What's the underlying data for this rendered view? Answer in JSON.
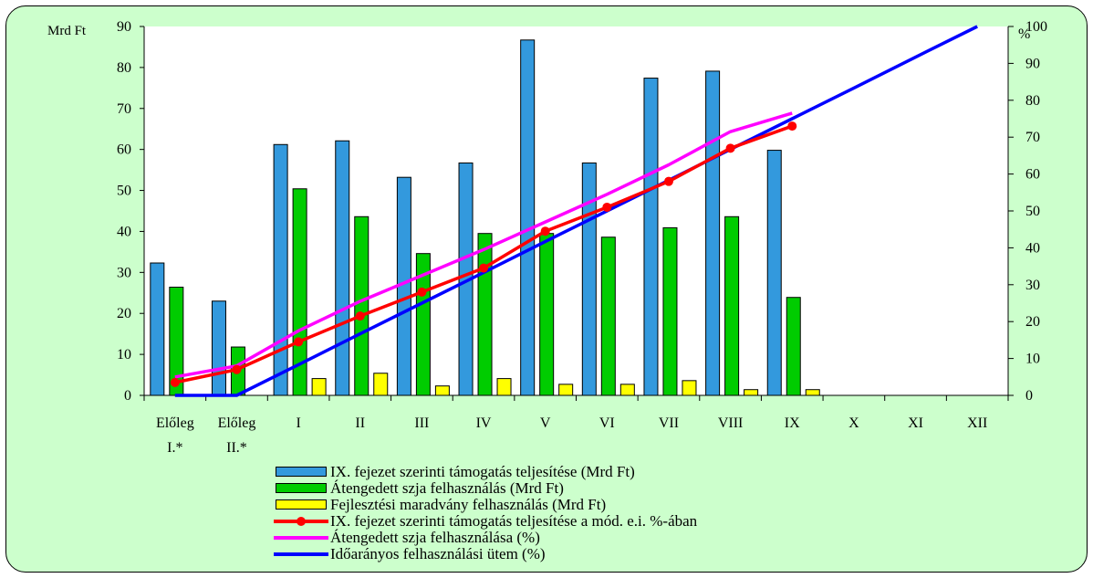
{
  "chart_data": {
    "type": "bar",
    "categories": [
      "Előleg I.*",
      "Előleg II.*",
      "I",
      "II",
      "III",
      "IV",
      "V",
      "VI",
      "VII",
      "VIII",
      "IX",
      "X",
      "XI",
      "XII"
    ],
    "left_axis": {
      "label": "Mrd Ft",
      "ylim": [
        0,
        90
      ],
      "ticks": [
        0,
        10,
        20,
        30,
        40,
        50,
        60,
        70,
        80,
        90
      ]
    },
    "right_axis": {
      "label": "%",
      "ylim": [
        0,
        100
      ],
      "ticks": [
        0,
        10,
        20,
        30,
        40,
        50,
        60,
        70,
        80,
        90,
        100
      ]
    },
    "series": [
      {
        "name": "IX. fejezet szerinti támogatás teljesítése (Mrd Ft)",
        "kind": "bar",
        "axis": "left",
        "color": "#3399dd",
        "values": [
          32.3,
          23,
          61.2,
          62.1,
          53.2,
          56.7,
          86.7,
          56.7,
          77.4,
          79.1,
          59.8,
          null,
          null,
          null
        ]
      },
      {
        "name": "Átengedett szja felhasználás (Mrd Ft)",
        "kind": "bar",
        "axis": "left",
        "color": "#00cc00",
        "values": [
          26.4,
          11.8,
          50.4,
          43.6,
          34.6,
          39.5,
          39.5,
          38.6,
          40.9,
          43.6,
          23.9,
          null,
          null,
          null
        ]
      },
      {
        "name": "Fejlesztési maradvány felhasználás (Mrd Ft)",
        "kind": "bar",
        "axis": "left",
        "color": "#ffff00",
        "values": [
          0,
          0,
          4.1,
          5.4,
          2.3,
          4.1,
          2.7,
          2.7,
          3.6,
          1.4,
          1.4,
          null,
          null,
          null
        ]
      },
      {
        "name": "IX. fejezet szerinti támogatás teljesítése a mód. e.i. %-ában",
        "kind": "line-marker",
        "axis": "right",
        "color": "#ff0000",
        "values": [
          3.5,
          7,
          14.5,
          21.5,
          28,
          34.5,
          44.5,
          51,
          58,
          67,
          73,
          null,
          null,
          null
        ]
      },
      {
        "name": "Átengedett szja felhasználása (%)",
        "kind": "line",
        "axis": "right",
        "color": "#ff00ff",
        "values": [
          5,
          8,
          17.5,
          25.5,
          32.5,
          39.5,
          47,
          54.5,
          62.5,
          71.5,
          76.5,
          null,
          null,
          null
        ]
      },
      {
        "name": "Időarányos felhasználási ütem (%)",
        "kind": "line",
        "axis": "right",
        "color": "#0000ff",
        "values": [
          0,
          0,
          8.3,
          16.7,
          25,
          33.3,
          41.7,
          50,
          58.3,
          66.7,
          75,
          83.3,
          91.7,
          100
        ]
      }
    ],
    "grid": false,
    "legend": "bottom"
  }
}
